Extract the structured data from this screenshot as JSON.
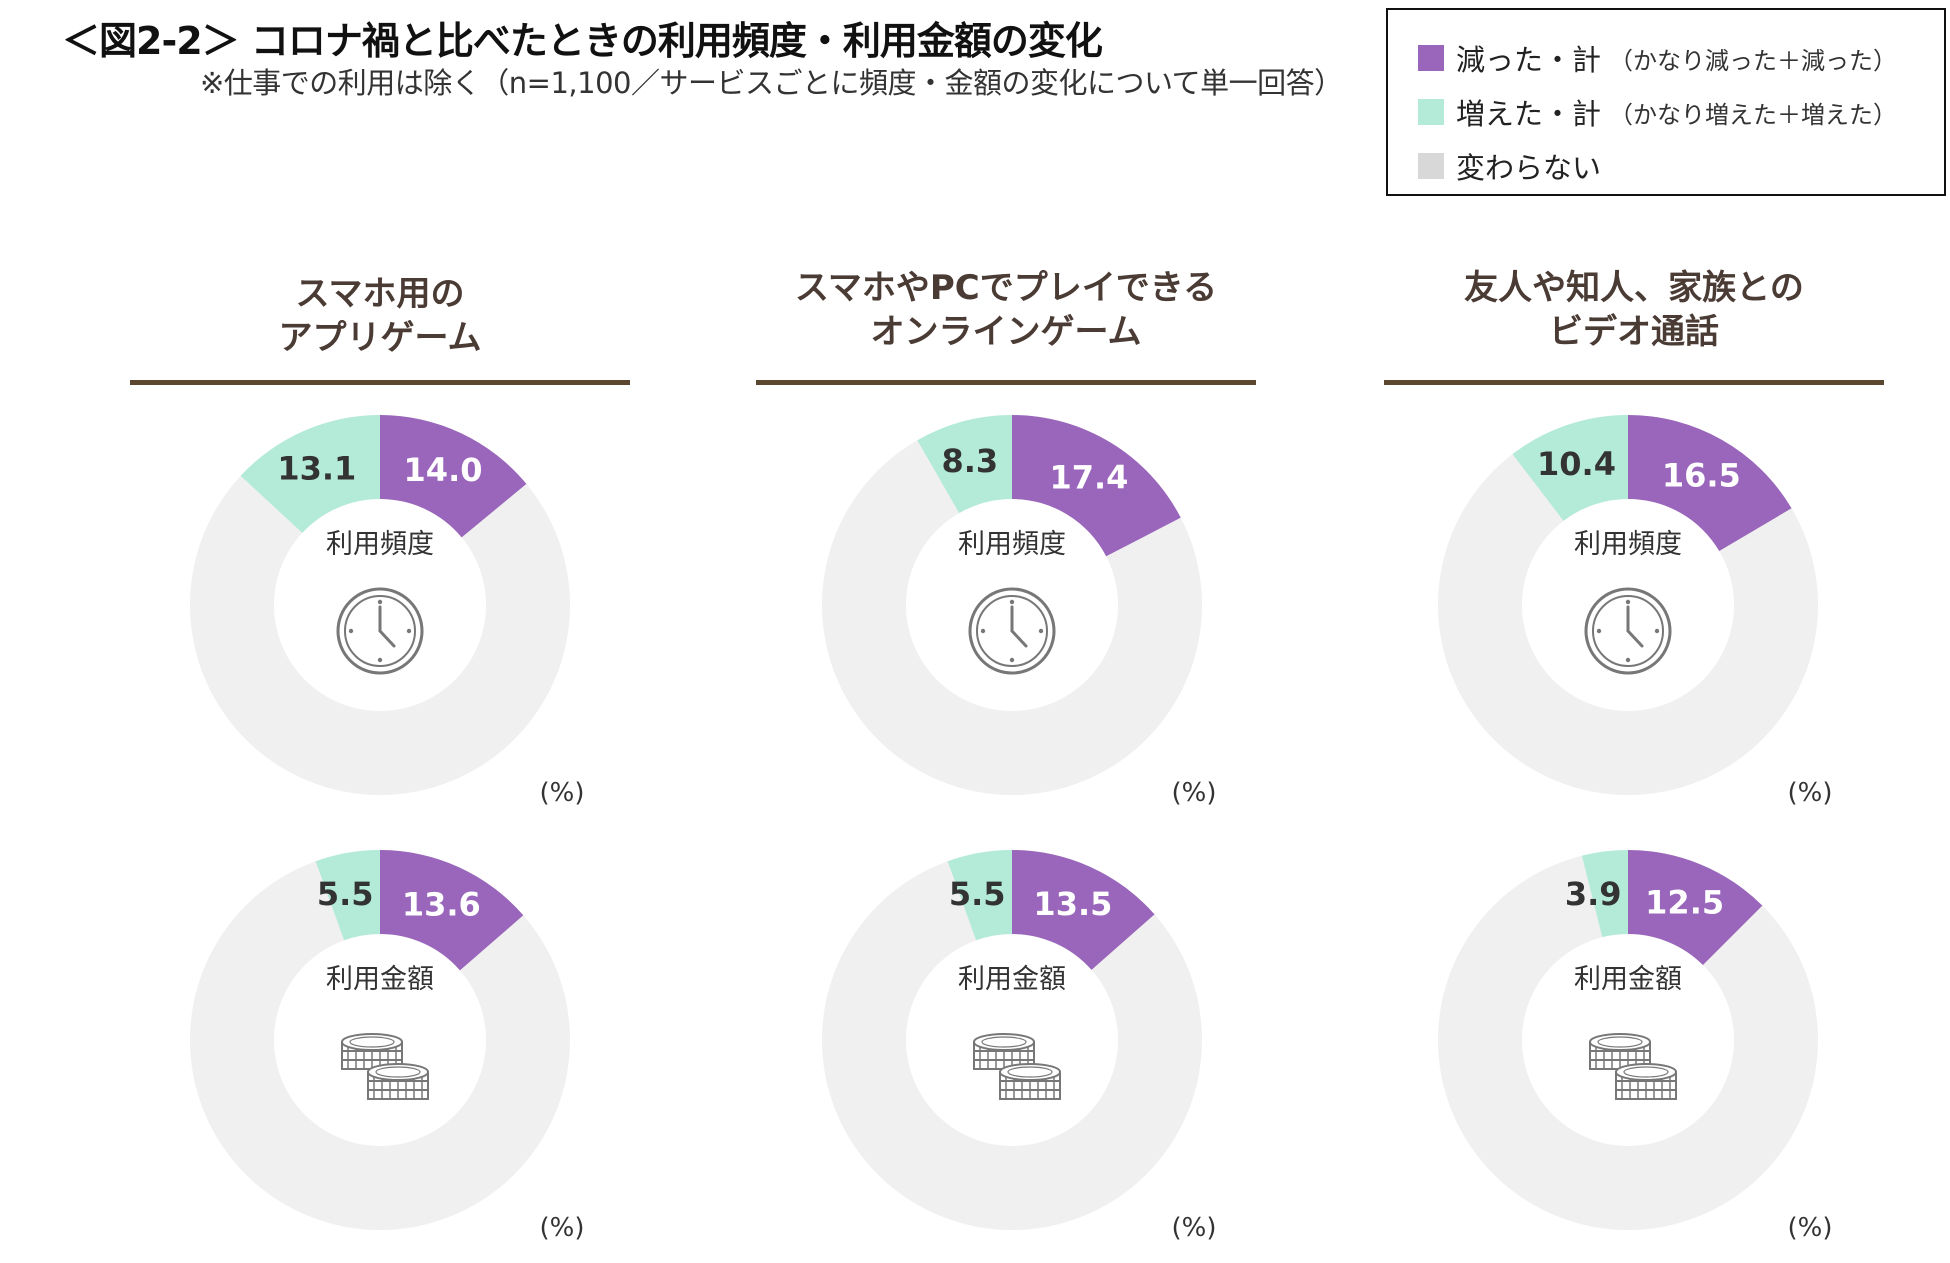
{
  "title": "＜図2-2＞ コロナ禍と比べたときの利用頻度・利用金額の変化",
  "subtitle": "※仕事での利用は除く（n=1,100／サービスごとに頻度・金額の変化について単一回答）",
  "legend": {
    "items": [
      {
        "label": "減った・計",
        "note": "（かなり減った＋減った）",
        "color": "#9966bb"
      },
      {
        "label": "増えた・計",
        "note": "（かなり増えた＋増えた）",
        "color": "#b3ebd8"
      },
      {
        "label": "変わらない",
        "note": "",
        "color": "#d8d8d8"
      }
    ]
  },
  "unit_label": "(%)",
  "colors": {
    "decreased": "#9966bb",
    "increased": "#b3ebd8",
    "unchanged": "#f0f0f0",
    "title_rule": "#5b4630",
    "icon": "#777777"
  },
  "categories": [
    {
      "title_lines": [
        "スマホ用の",
        "アプリゲーム"
      ]
    },
    {
      "title_lines": [
        "スマホやPCでプレイできる",
        "オンラインゲーム"
      ]
    },
    {
      "title_lines": [
        "友人や知人、家族との",
        "ビデオ通話"
      ]
    }
  ],
  "chart_data": {
    "type": "pie",
    "style": "donut",
    "unit": "%",
    "legend_placement": "top-right",
    "series_names": [
      "減った・計",
      "増えた・計",
      "変わらない"
    ],
    "charts": [
      {
        "category": "スマホ用のアプリゲーム",
        "metric": "利用頻度",
        "icon": "clock-icon",
        "decreased": 14.0,
        "increased": 13.1,
        "decreased_label": "14.0",
        "increased_label": "13.1"
      },
      {
        "category": "スマホやPCでプレイできるオンラインゲーム",
        "metric": "利用頻度",
        "icon": "clock-icon",
        "decreased": 17.4,
        "increased": 8.3,
        "decreased_label": "17.4",
        "increased_label": "8.3"
      },
      {
        "category": "友人や知人、家族とのビデオ通話",
        "metric": "利用頻度",
        "icon": "clock-icon",
        "decreased": 16.5,
        "increased": 10.4,
        "decreased_label": "16.5",
        "increased_label": "10.4"
      },
      {
        "category": "スマホ用のアプリゲーム",
        "metric": "利用金額",
        "icon": "coins-icon",
        "decreased": 13.6,
        "increased": 5.5,
        "decreased_label": "13.6",
        "increased_label": "5.5"
      },
      {
        "category": "スマホやPCでプレイできるオンラインゲーム",
        "metric": "利用金額",
        "icon": "coins-icon",
        "decreased": 13.5,
        "increased": 5.5,
        "decreased_label": "13.5",
        "increased_label": "5.5"
      },
      {
        "category": "友人や知人、家族とのビデオ通話",
        "metric": "利用金額",
        "icon": "coins-icon",
        "decreased": 12.5,
        "increased": 3.9,
        "decreased_label": "12.5",
        "increased_label": "3.9"
      }
    ]
  }
}
